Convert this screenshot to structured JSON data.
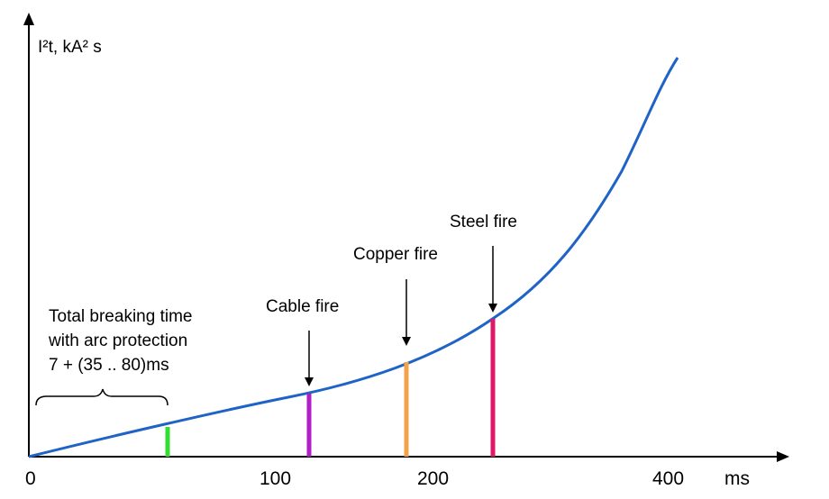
{
  "chart_data": {
    "type": "line",
    "title": "",
    "ylabel": "I²t, kA² s",
    "xlabel": "ms",
    "x_ticks": [
      {
        "value": 0,
        "label": "0"
      },
      {
        "value": 100,
        "label": "100"
      },
      {
        "value": 200,
        "label": "200"
      },
      {
        "value": 400,
        "label": "400"
      }
    ],
    "curve_color": "#1f63c6",
    "breaking_time_annotation": {
      "lines": [
        "Total breaking time",
        "with arc protection",
        "7 + (35 .. 80)ms"
      ]
    },
    "markers": [
      {
        "label": "",
        "color": "#33dd33",
        "has_arrow": false
      },
      {
        "label": "Cable fire",
        "color": "#b21fc6",
        "has_arrow": true
      },
      {
        "label": "Copper fire",
        "color": "#f4a24a",
        "has_arrow": true
      },
      {
        "label": "Steel fire",
        "color": "#e0186a",
        "has_arrow": true
      }
    ]
  }
}
